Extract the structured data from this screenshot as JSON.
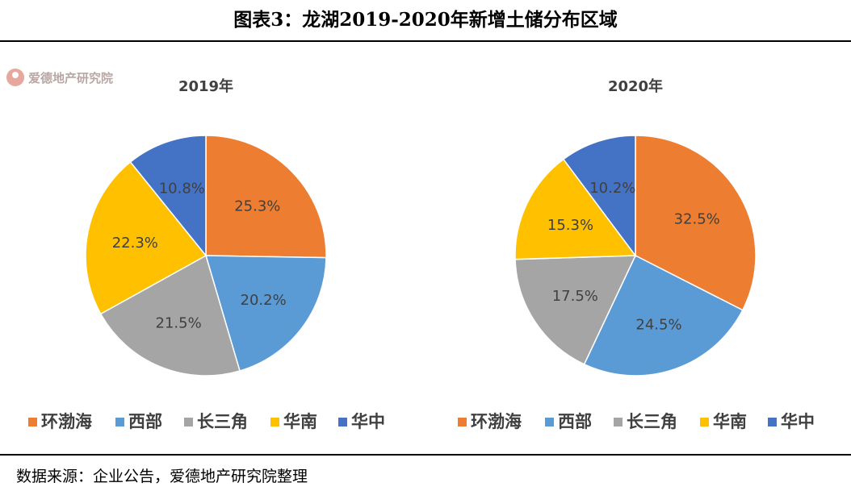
{
  "title": "图表3：龙湖2019-2020年新增土储分布区域",
  "watermark": "爱德地产研究院",
  "source": "数据来源：企业公告，爱德地产研究院整理",
  "colors": {
    "环渤海": "#ed7d31",
    "西部": "#5b9bd5",
    "长三角": "#a5a5a5",
    "华南": "#ffc000",
    "华中": "#4472c4"
  },
  "chart_data": [
    {
      "type": "pie",
      "title": "2019年",
      "categories": [
        "环渤海",
        "西部",
        "长三角",
        "华南",
        "华中"
      ],
      "values": [
        25.3,
        20.2,
        21.5,
        22.3,
        10.8
      ],
      "labels": [
        "25.3%",
        "20.2%",
        "21.5%",
        "22.3%",
        "10.8%"
      ],
      "unit": "%",
      "legend": "bottom"
    },
    {
      "type": "pie",
      "title": "2020年",
      "categories": [
        "环渤海",
        "西部",
        "长三角",
        "华南",
        "华中"
      ],
      "values": [
        32.5,
        24.5,
        17.5,
        15.3,
        10.2
      ],
      "labels": [
        "32.5%",
        "24.5%",
        "17.5%",
        "15.3%",
        "10.2%"
      ],
      "unit": "%",
      "legend": "bottom"
    }
  ]
}
